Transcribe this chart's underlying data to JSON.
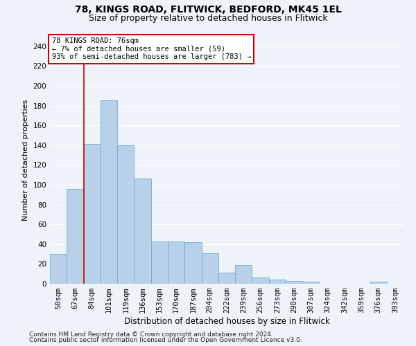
{
  "title1": "78, KINGS ROAD, FLITWICK, BEDFORD, MK45 1EL",
  "title2": "Size of property relative to detached houses in Flitwick",
  "xlabel": "Distribution of detached houses by size in Flitwick",
  "ylabel": "Number of detached properties",
  "categories": [
    "50sqm",
    "67sqm",
    "84sqm",
    "101sqm",
    "119sqm",
    "136sqm",
    "153sqm",
    "170sqm",
    "187sqm",
    "204sqm",
    "222sqm",
    "239sqm",
    "256sqm",
    "273sqm",
    "290sqm",
    "307sqm",
    "324sqm",
    "342sqm",
    "359sqm",
    "376sqm",
    "393sqm"
  ],
  "values": [
    30,
    96,
    141,
    185,
    140,
    106,
    43,
    43,
    42,
    31,
    11,
    19,
    6,
    4,
    3,
    2,
    0,
    0,
    0,
    2,
    0
  ],
  "bar_color": "#b8d0e8",
  "bar_edge_color": "#6aaed6",
  "vline_x": 1.5,
  "vline_color": "#cc0000",
  "annotation_text": "78 KINGS ROAD: 76sqm\n← 7% of detached houses are smaller (59)\n93% of semi-detached houses are larger (783) →",
  "annotation_box_color": "#ffffff",
  "annotation_box_edge_color": "#cc0000",
  "ylim": [
    0,
    250
  ],
  "yticks": [
    0,
    20,
    40,
    60,
    80,
    100,
    120,
    140,
    160,
    180,
    200,
    220,
    240
  ],
  "footer1": "Contains HM Land Registry data © Crown copyright and database right 2024.",
  "footer2": "Contains public sector information licensed under the Open Government Licence v3.0.",
  "fig_bg_color": "#eef3fa",
  "axes_bg_color": "#eef3fa",
  "grid_color": "#ffffff",
  "title1_fontsize": 10,
  "title2_fontsize": 9,
  "xlabel_fontsize": 8.5,
  "ylabel_fontsize": 8,
  "tick_fontsize": 7.5,
  "footer_fontsize": 6.5,
  "ann_fontsize": 7.5
}
